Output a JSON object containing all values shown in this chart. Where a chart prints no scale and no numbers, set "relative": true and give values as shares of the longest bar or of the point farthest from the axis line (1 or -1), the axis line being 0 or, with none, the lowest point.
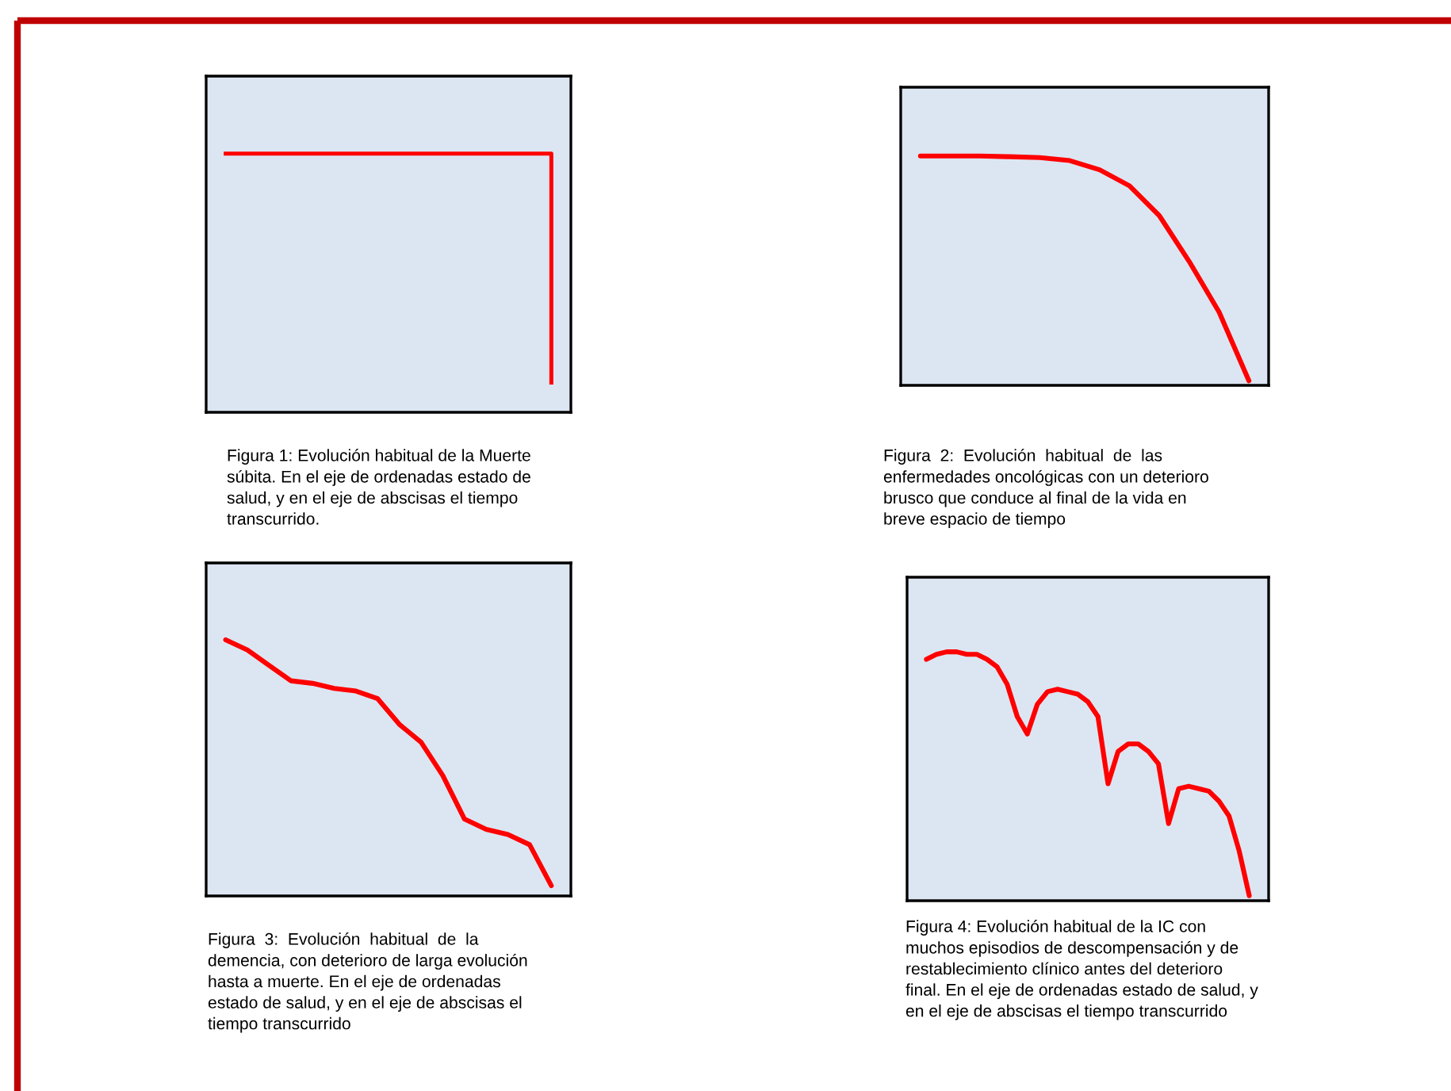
{
  "chart_data": [
    {
      "type": "step",
      "relative": true,
      "categories": [
        null,
        null,
        null,
        null,
        null
      ],
      "series": [
        {
          "color": "#ff0000",
          "values": [
            1,
            1,
            1,
            1,
            0.115
          ]
        }
      ],
      "annotations": [
        "Figura 1: Evolución habitual de la Muerte\nsúbita. En el eje de ordenadas estado de\nsalud, y en el eje de abscisas el tiempo\ntranscurrido."
      ]
    },
    {
      "type": "line",
      "relative": true,
      "categories": [
        null,
        null,
        null,
        null,
        null,
        null,
        null,
        null,
        null,
        null,
        null,
        null
      ],
      "series": [
        {
          "color": "#ff0000",
          "values": [
            1,
            1,
            1,
            0.997,
            0.993,
            0.98,
            0.94,
            0.87,
            0.74,
            0.54,
            0.32,
            0.02
          ]
        }
      ],
      "annotations": [
        "Figura  2:  Evolución  habitual  de  las\nenfermedades oncológicas con un deterioro\nbrusco que conduce al final de la vida en\nbreve espacio de tiempo"
      ]
    },
    {
      "type": "line",
      "relative": true,
      "categories": [
        null,
        null,
        null,
        null,
        null,
        null,
        null,
        null,
        null,
        null,
        null,
        null,
        null,
        null,
        null,
        null
      ],
      "series": [
        {
          "color": "#ff0000",
          "values": [
            1,
            0.96,
            0.9,
            0.84,
            0.83,
            0.81,
            0.8,
            0.77,
            0.67,
            0.6,
            0.47,
            0.3,
            0.26,
            0.24,
            0.2,
            0.04
          ]
        }
      ],
      "annotations": [
        "Figura  3:  Evolución  habitual  de  la\ndemencia, con deterioro de larga evolución\nhasta a muerte. En el eje de ordenadas\nestado de salud, y en el eje de abscisas el\ntiempo transcurrido"
      ]
    },
    {
      "type": "line",
      "relative": true,
      "categories": [
        null,
        null,
        null,
        null,
        null,
        null,
        null,
        null,
        null,
        null,
        null,
        null,
        null,
        null,
        null,
        null,
        null,
        null,
        null,
        null,
        null,
        null,
        null,
        null,
        null,
        null,
        null,
        null,
        null,
        null,
        null,
        null,
        null
      ],
      "series": [
        {
          "color": "#ff0000",
          "values": [
            0.97,
            0.99,
            1,
            1,
            0.99,
            0.99,
            0.97,
            0.94,
            0.87,
            0.74,
            0.67,
            0.79,
            0.84,
            0.85,
            0.84,
            0.83,
            0.8,
            0.74,
            0.47,
            0.6,
            0.63,
            0.63,
            0.6,
            0.55,
            0.31,
            0.45,
            0.46,
            0.45,
            0.44,
            0.4,
            0.34,
            0.2,
            0.02
          ]
        }
      ],
      "annotations": [
        "Figura 4: Evolución habitual de la IC con\nmuchos episodios de descompensación y de\nrestablecimiento clínico antes del deterioro\nfinal. En el eje de ordenadas estado de salud, y\nen el eje de abscisas el tiempo transcurrido"
      ]
    }
  ]
}
